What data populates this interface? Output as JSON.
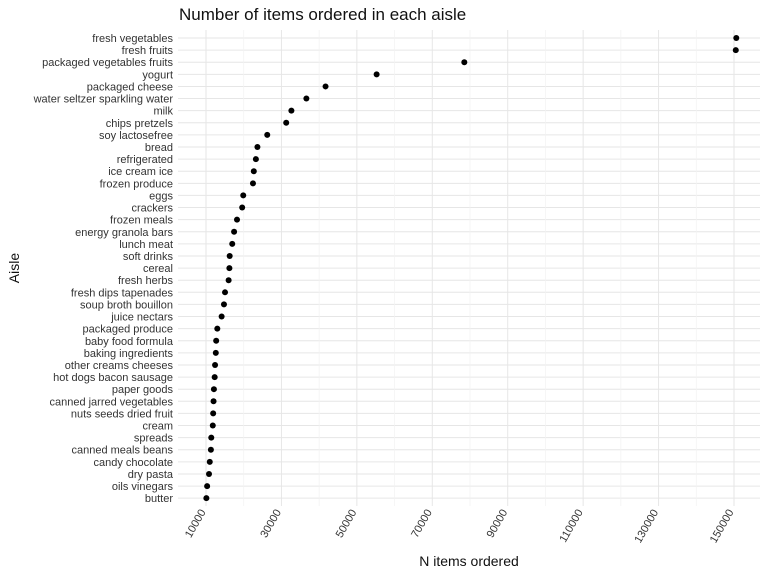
{
  "chart_data": {
    "type": "scatter",
    "title": "Number of items ordered in each aisle",
    "xlabel": "N items ordered",
    "ylabel": "Aisle",
    "xlim": [
      9000,
      151000
    ],
    "xticks": [
      10000,
      30000,
      50000,
      70000,
      90000,
      110000,
      130000,
      150000
    ],
    "xtick_labels": [
      "10000",
      "30000",
      "50000",
      "70000",
      "90000",
      "110000",
      "130000",
      "150000"
    ],
    "grid": true,
    "categories": [
      "fresh vegetables",
      "fresh fruits",
      "packaged vegetables fruits",
      "yogurt",
      "packaged cheese",
      "water seltzer sparkling water",
      "milk",
      "chips pretzels",
      "soy lactosefree",
      "bread",
      "refrigerated",
      "ice cream ice",
      "frozen produce",
      "eggs",
      "crackers",
      "frozen meals",
      "energy granola bars",
      "lunch meat",
      "soft drinks",
      "cereal",
      "fresh herbs",
      "fresh dips tapenades",
      "soup broth bouillon",
      "juice nectars",
      "packaged produce",
      "baby food formula",
      "baking ingredients",
      "other creams cheeses",
      "hot dogs bacon sausage",
      "paper goods",
      "canned jarred vegetables",
      "nuts seeds dried fruit",
      "cream",
      "spreads",
      "canned meals beans",
      "candy chocolate",
      "dry pasta",
      "oils vinegars",
      "butter"
    ],
    "values": [
      150609,
      150473,
      78493,
      55240,
      41699,
      36617,
      32644,
      31269,
      26240,
      23635,
      23228,
      22676,
      22453,
      19875,
      19592,
      18221,
      17449,
      16957,
      16279,
      16201,
      16000,
      15044,
      14764,
      14145,
      13000,
      12700,
      12600,
      12400,
      12300,
      12100,
      12000,
      11900,
      11800,
      11400,
      11300,
      11000,
      10800,
      10300,
      10100
    ]
  }
}
